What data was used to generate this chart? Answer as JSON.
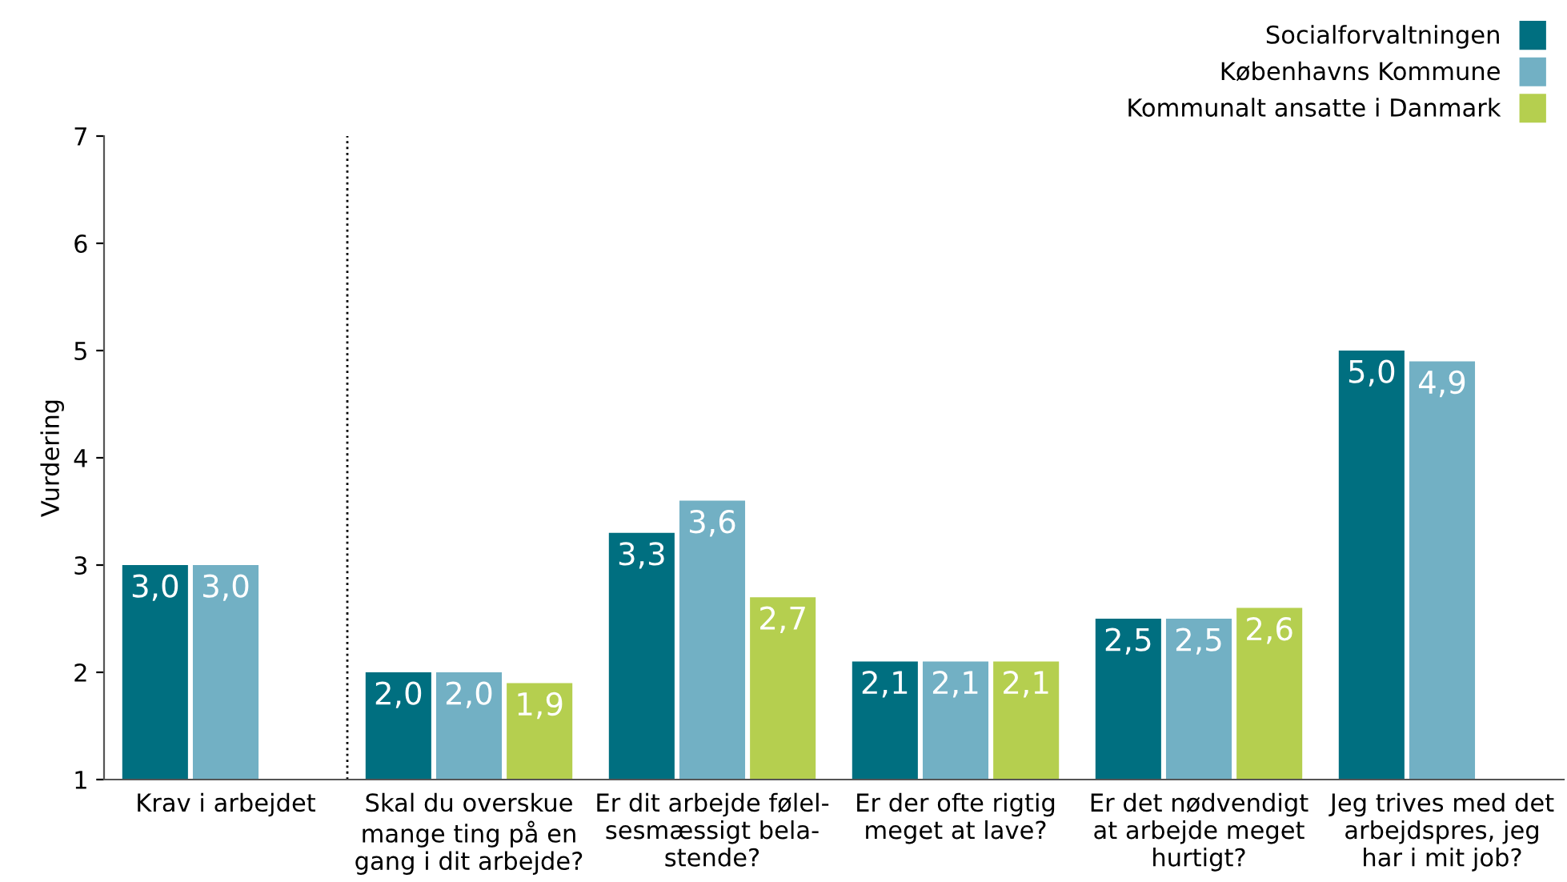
{
  "chart_data": {
    "type": "bar",
    "categories": [
      "Krav i arbejdet",
      "Skal du overskue\nmange ting på en\ngang i dit arbejde?",
      "Er dit arbejde følel-\nsesmæssigt bela-\nstende?",
      "Er der ofte rigtig\nmeget at lave?",
      "Er det nødvendigt\nat arbejde meget\nhurtigt?",
      "Jeg trives med det\narbejdspres, jeg\nhar i mit job?"
    ],
    "series": [
      {
        "name": "Socialforvaltningen",
        "color": "#006f80",
        "values": [
          3.0,
          2.0,
          3.3,
          2.1,
          2.5,
          5.0
        ],
        "value_labels": [
          "3,0",
          "2,0",
          "3,3",
          "2,1",
          "2,5",
          "5,0"
        ]
      },
      {
        "name": "Københavns Kommune",
        "color": "#72b0c4",
        "values": [
          3.0,
          2.0,
          3.6,
          2.1,
          2.5,
          4.9
        ],
        "value_labels": [
          "3,0",
          "2,0",
          "3,6",
          "2,1",
          "2,5",
          "4,9"
        ]
      },
      {
        "name": "Kommunalt ansatte i Danmark",
        "color": "#b5cf4f",
        "values": [
          null,
          1.9,
          2.7,
          2.1,
          2.6,
          null
        ],
        "value_labels": [
          null,
          "1,9",
          "2,7",
          "2,1",
          "2,6",
          null
        ]
      }
    ],
    "ylabel": "Vurdering",
    "ylim": [
      1,
      7
    ],
    "yticks": [
      1,
      2,
      3,
      4,
      5,
      6,
      7
    ],
    "grid": false,
    "legend": "top right"
  }
}
